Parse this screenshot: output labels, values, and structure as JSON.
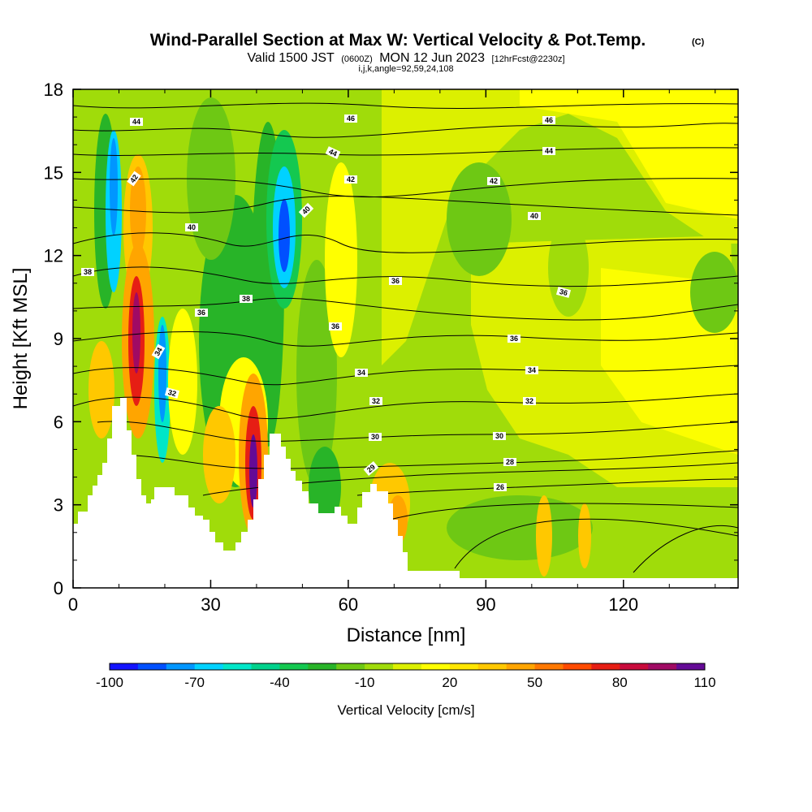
{
  "chart_data": {
    "type": "heatmap",
    "title": "Wind-Parallel Section at Max W: Vertical Velocity & Pot.Temp.",
    "title_mark": "(C)",
    "subtitle": {
      "valid": "Valid 1500 JST",
      "utc": "(0600Z)",
      "date": "MON 12 Jun 2023",
      "forecast": "[12hrFcst@2230z]",
      "indices": "i,j,k,angle=92,59,24,108"
    },
    "xlabel": "Distance [nm]",
    "ylabel": "Height [Kft MSL]",
    "xlim": [
      0,
      145
    ],
    "ylim": [
      0,
      18
    ],
    "x_ticks": [
      "0",
      "30",
      "60",
      "90",
      "120"
    ],
    "y_ticks": [
      "0",
      "3",
      "6",
      "9",
      "12",
      "15",
      "18"
    ],
    "colorbar": {
      "label": "Vertical Velocity [cm/s]",
      "tick_labels": [
        "-100",
        "-70",
        "-40",
        "-10",
        "20",
        "50",
        "80",
        "110"
      ],
      "colors": [
        "#1414ff",
        "#0050ff",
        "#0096ff",
        "#00d2ff",
        "#00e6c8",
        "#00d28c",
        "#14c850",
        "#28b428",
        "#6ec814",
        "#a0dc0a",
        "#dcf000",
        "#ffff00",
        "#ffe600",
        "#ffc800",
        "#ffa500",
        "#ff7800",
        "#ff4b00",
        "#e61e14",
        "#c80a3c",
        "#a00a64",
        "#640a96"
      ]
    },
    "grid": false,
    "series": [
      {
        "name": "Vertical Velocity",
        "values": [
          {
            "x": 8,
            "y": 12,
            "w": -80
          },
          {
            "x": 10,
            "y": 16,
            "w": -70
          },
          {
            "x": 13,
            "y": 10,
            "w": 90
          },
          {
            "x": 15,
            "y": 14,
            "w": 50
          },
          {
            "x": 18,
            "y": 5,
            "w": -60
          },
          {
            "x": 20,
            "y": 9,
            "w": -40
          },
          {
            "x": 30,
            "y": 12,
            "w": -30
          },
          {
            "x": 35,
            "y": 15,
            "w": -40
          },
          {
            "x": 39,
            "y": 5,
            "w": 110
          },
          {
            "x": 46,
            "y": 13,
            "w": -90
          },
          {
            "x": 70,
            "y": 2.5,
            "w": 40
          },
          {
            "x": 100,
            "y": 12,
            "w": -10
          },
          {
            "x": 140,
            "y": 11,
            "w": -30
          }
        ]
      },
      {
        "name": "Pot.Temp.",
        "contour_labels": [
          "26",
          "28",
          "29",
          "30",
          "32",
          "34",
          "36",
          "38",
          "40",
          "42",
          "44",
          "46"
        ]
      }
    ]
  }
}
